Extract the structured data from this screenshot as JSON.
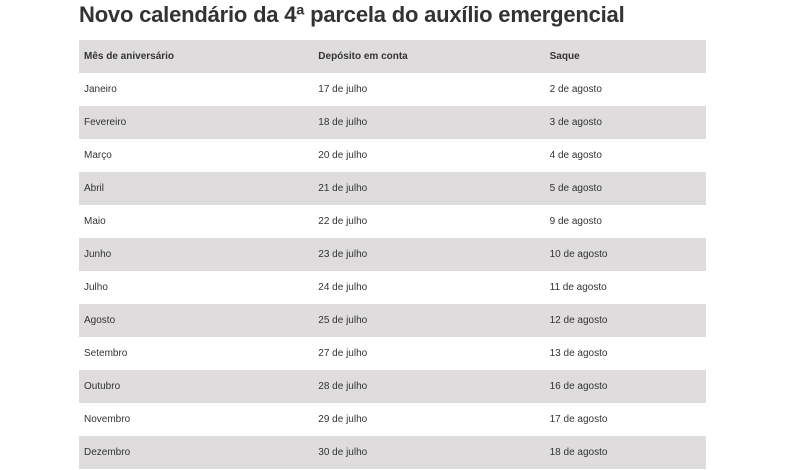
{
  "title": "Novo calendário da 4ª parcela do auxílio emergencial",
  "table": {
    "headers": [
      "Mês de aniversário",
      "Depósito em conta",
      "Saque"
    ],
    "rows": [
      [
        "Janeiro",
        "17 de julho",
        "2 de agosto"
      ],
      [
        "Fevereiro",
        "18 de julho",
        "3 de agosto"
      ],
      [
        "Março",
        "20 de julho",
        "4 de agosto"
      ],
      [
        "Abril",
        "21 de julho",
        "5 de agosto"
      ],
      [
        "Maio",
        "22 de julho",
        "9 de agosto"
      ],
      [
        "Junho",
        "23 de julho",
        "10 de agosto"
      ],
      [
        "Julho",
        "24 de julho",
        "11 de agosto"
      ],
      [
        "Agosto",
        "25 de julho",
        "12 de agosto"
      ],
      [
        "Setembro",
        "27 de julho",
        "13 de agosto"
      ],
      [
        "Outubro",
        "28 de julho",
        "16 de agosto"
      ],
      [
        "Novembro",
        "29 de julho",
        "17 de agosto"
      ],
      [
        "Dezembro",
        "30 de julho",
        "18 de agosto"
      ]
    ]
  },
  "colors": {
    "text": "#333333",
    "stripe": "#dedcdd",
    "background": "#ffffff"
  }
}
